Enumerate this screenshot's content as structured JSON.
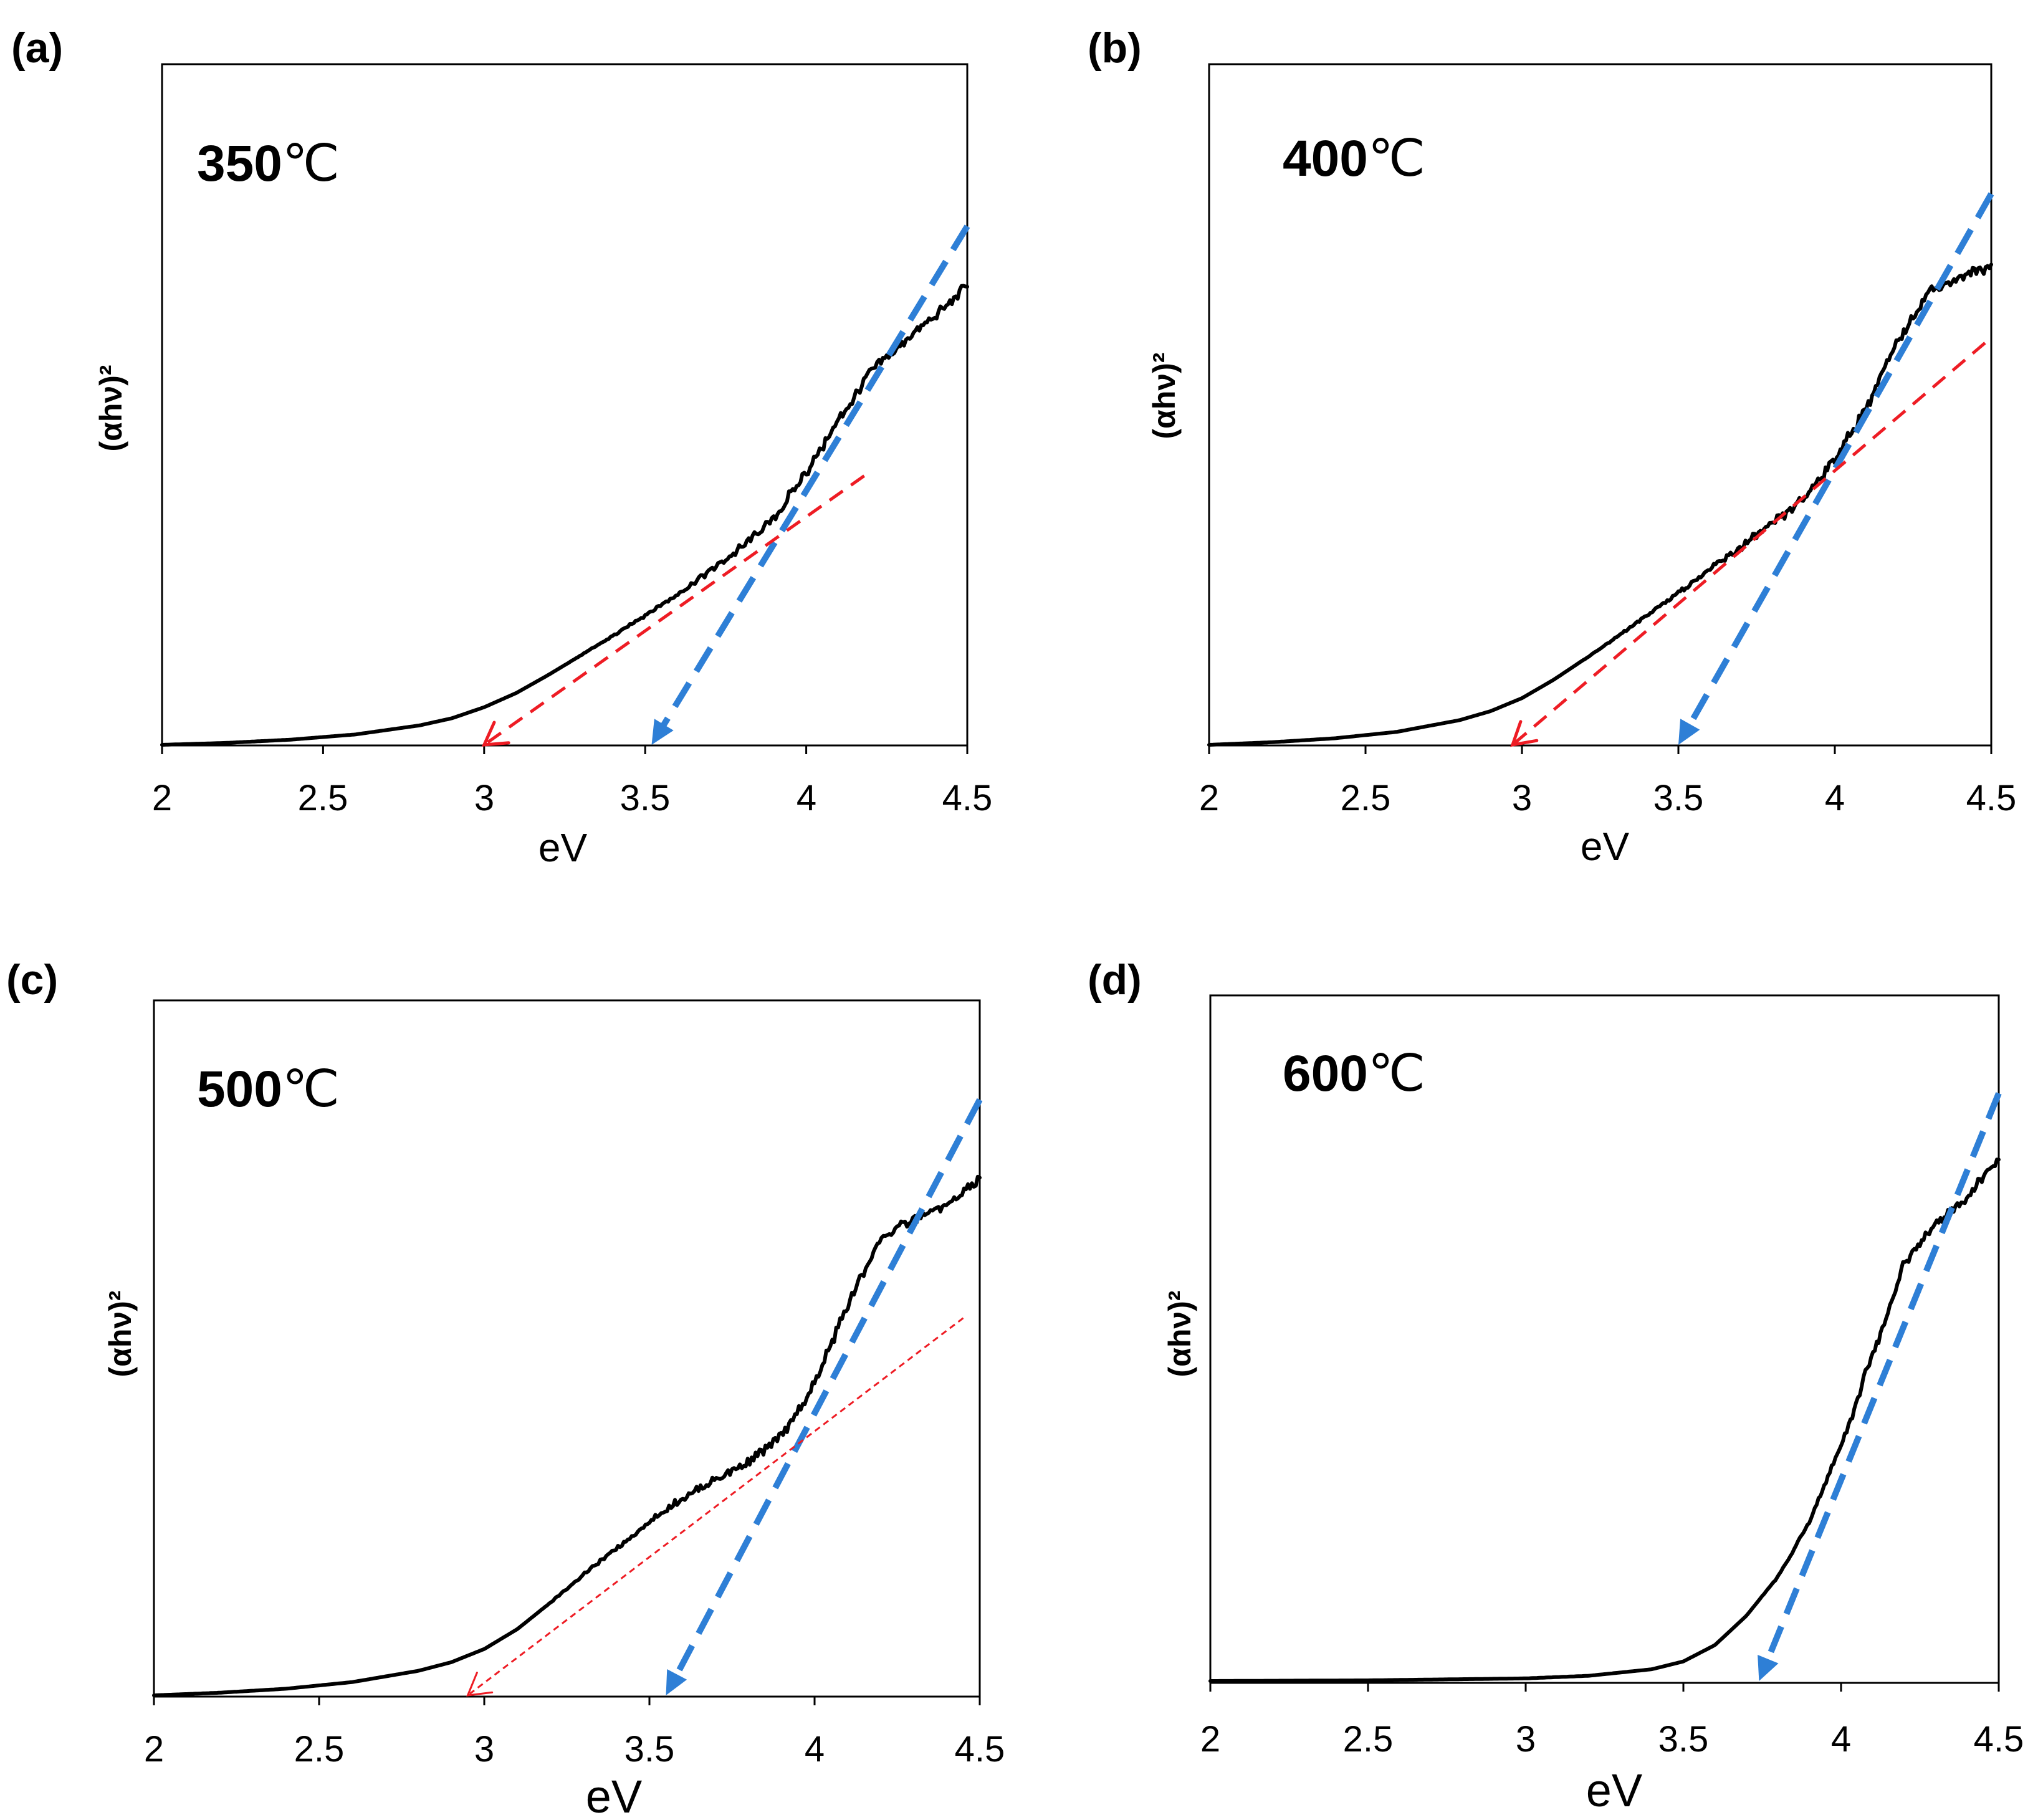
{
  "figure": {
    "ylabel_text": "(αhν)²",
    "xlabel_text": "eV"
  },
  "chart_data": [
    {
      "type": "line",
      "panel": "(a)",
      "annotation_value": "350",
      "annotation_unit": "℃",
      "xlabel": "eV",
      "ylabel": "(αhν)²",
      "xlim": [
        2,
        4.5
      ],
      "ylim": [
        0,
        1.05
      ],
      "xticks": [
        "2",
        "2.5",
        "3",
        "3.5",
        "4",
        "4.5"
      ],
      "series": [
        {
          "name": "(αhν)²",
          "x": [
            2.0,
            2.2,
            2.4,
            2.6,
            2.8,
            2.9,
            3.0,
            3.1,
            3.2,
            3.3,
            3.4,
            3.5,
            3.6,
            3.7,
            3.8,
            3.9,
            4.0,
            4.1,
            4.2,
            4.3,
            4.4,
            4.5
          ],
          "y": [
            0.0,
            0.003,
            0.008,
            0.016,
            0.03,
            0.041,
            0.058,
            0.08,
            0.108,
            0.138,
            0.168,
            0.2,
            0.232,
            0.268,
            0.305,
            0.35,
            0.42,
            0.5,
            0.575,
            0.62,
            0.66,
            0.71
          ]
        }
      ],
      "fits": [
        {
          "color": "blue",
          "x": [
            4.5,
            3.52
          ],
          "y": [
            0.8,
            0.0
          ]
        },
        {
          "color": "red",
          "x": [
            4.18,
            3.0
          ],
          "y": [
            0.415,
            0.0
          ]
        }
      ],
      "band_gaps_eV": [
        3.5,
        3.0
      ]
    },
    {
      "type": "line",
      "panel": "(b)",
      "annotation_value": "400",
      "annotation_unit": "℃",
      "xlabel": "eV",
      "ylabel": "(αhν)²",
      "xlim": [
        2,
        4.5
      ],
      "ylim": [
        0,
        1.05
      ],
      "xticks": [
        "2",
        "2.5",
        "3",
        "3.5",
        "4",
        "4.5"
      ],
      "series": [
        {
          "name": "(αhν)²",
          "x": [
            2.0,
            2.2,
            2.4,
            2.6,
            2.8,
            2.9,
            3.0,
            3.1,
            3.2,
            3.3,
            3.4,
            3.5,
            3.6,
            3.7,
            3.8,
            3.9,
            4.0,
            4.1,
            4.2,
            4.3,
            4.4,
            4.5
          ],
          "y": [
            0.0,
            0.004,
            0.01,
            0.02,
            0.038,
            0.052,
            0.072,
            0.1,
            0.132,
            0.165,
            0.2,
            0.235,
            0.27,
            0.305,
            0.34,
            0.38,
            0.44,
            0.52,
            0.62,
            0.7,
            0.72,
            0.74
          ]
        }
      ],
      "fits": [
        {
          "color": "blue",
          "x": [
            4.5,
            3.5
          ],
          "y": [
            0.85,
            0.0
          ]
        },
        {
          "color": "red",
          "x": [
            4.48,
            2.97
          ],
          "y": [
            0.62,
            0.0
          ]
        }
      ],
      "band_gaps_eV": [
        3.5,
        2.97
      ]
    },
    {
      "type": "line",
      "panel": "(c)",
      "annotation_value": "500",
      "annotation_unit": "℃",
      "xlabel": "eV",
      "ylabel": "(αhν)²",
      "xlim": [
        2,
        4.5
      ],
      "ylim": [
        0,
        1.05
      ],
      "xticks": [
        "2",
        "2.5",
        "3",
        "3.5",
        "4",
        "4.5"
      ],
      "series": [
        {
          "name": "(αhν)²",
          "x": [
            2.0,
            2.2,
            2.4,
            2.6,
            2.8,
            2.9,
            3.0,
            3.1,
            3.2,
            3.3,
            3.4,
            3.5,
            3.6,
            3.7,
            3.8,
            3.9,
            4.0,
            4.1,
            4.2,
            4.3,
            4.4,
            4.5
          ],
          "y": [
            0.0,
            0.004,
            0.01,
            0.02,
            0.037,
            0.05,
            0.07,
            0.1,
            0.14,
            0.182,
            0.222,
            0.262,
            0.298,
            0.326,
            0.352,
            0.39,
            0.47,
            0.59,
            0.69,
            0.72,
            0.74,
            0.78
          ]
        }
      ],
      "fits": [
        {
          "color": "blue",
          "x": [
            4.5,
            3.55
          ],
          "y": [
            0.9,
            0.0
          ]
        },
        {
          "color": "red",
          "x": [
            4.45,
            2.95
          ],
          "y": [
            0.57,
            0.0
          ]
        }
      ],
      "band_gaps_eV": [
        3.55,
        2.95
      ]
    },
    {
      "type": "line",
      "panel": "(d)",
      "annotation_value": "600",
      "annotation_unit": "℃",
      "xlabel": "eV",
      "ylabel": "(αhν)²",
      "xlim": [
        2,
        4.5
      ],
      "ylim": [
        0,
        1.05
      ],
      "xticks": [
        "2",
        "2.5",
        "3",
        "3.5",
        "4",
        "4.5"
      ],
      "series": [
        {
          "name": "(αhν)²",
          "x": [
            2.0,
            2.5,
            3.0,
            3.2,
            3.4,
            3.5,
            3.6,
            3.7,
            3.8,
            3.85,
            3.9,
            4.0,
            4.1,
            4.2,
            4.3,
            4.4,
            4.5
          ],
          "y": [
            0.0,
            0.001,
            0.004,
            0.008,
            0.018,
            0.03,
            0.055,
            0.1,
            0.16,
            0.2,
            0.245,
            0.36,
            0.5,
            0.64,
            0.7,
            0.74,
            0.8
          ]
        }
      ],
      "fits": [
        {
          "color": "blue",
          "x": [
            4.5,
            3.74
          ],
          "y": [
            0.9,
            0.0
          ]
        }
      ],
      "band_gaps_eV": [
        3.74
      ]
    }
  ]
}
